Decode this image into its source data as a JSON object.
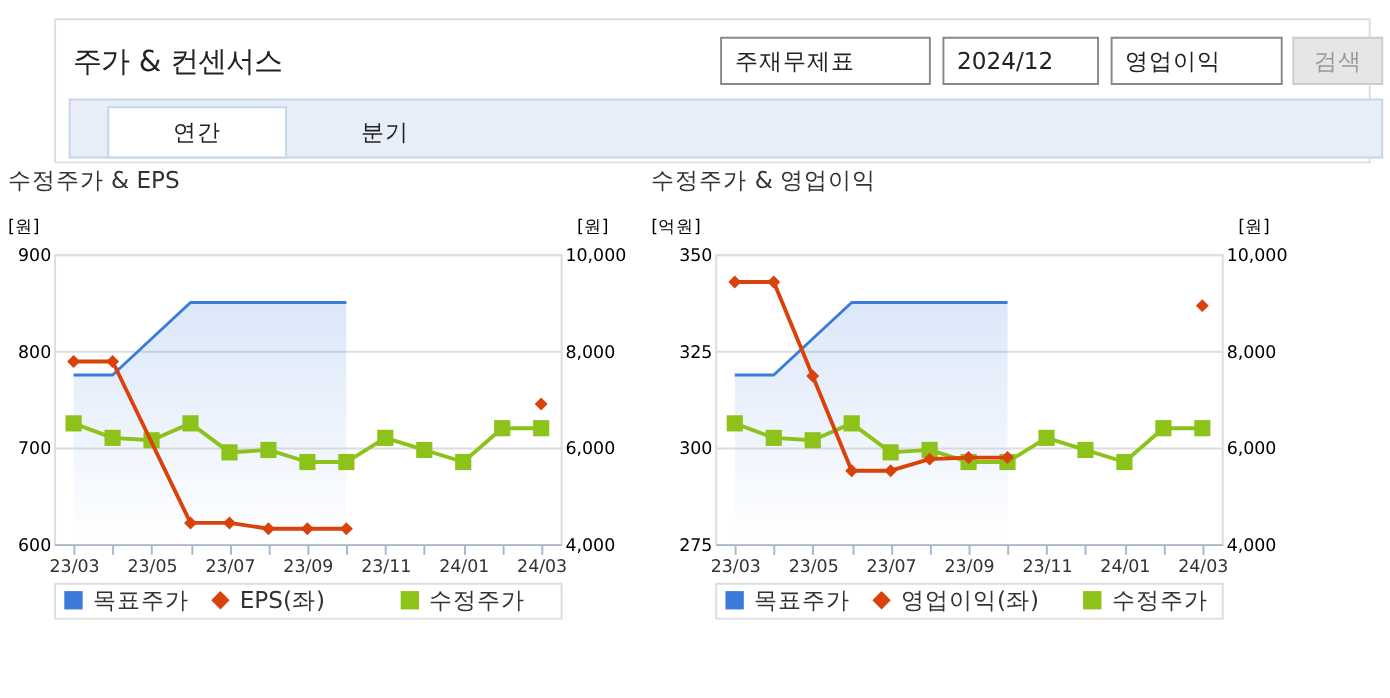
{
  "chart_data": [
    {
      "type": "other",
      "annotations": [
        "주가 & 컨센서스",
        "주재무제표",
        "2024/12",
        "영업이익",
        "검색",
        "연간",
        "분기"
      ]
    },
    {
      "type": "line",
      "title": "수정주가 & EPS",
      "ylabel": "[원]",
      "y2label": "[원]",
      "categories": [
        "23/03",
        null,
        "23/05",
        null,
        "23/07",
        null,
        "23/09",
        null,
        "23/11",
        null,
        "24/01",
        null,
        "24/03"
      ],
      "ylim": [
        600,
        900
      ],
      "yticks": [
        600,
        700,
        800,
        900
      ],
      "y2lim": [
        4000,
        10000
      ],
      "y2ticks": [
        {
          "value": 4000,
          "label": "4,000"
        },
        {
          "value": 6000,
          "label": "6,000"
        },
        {
          "value": 8000,
          "label": "8,000"
        },
        {
          "value": 10000,
          "label": "10,000"
        }
      ],
      "grid": "y",
      "legend": "bottom",
      "series": [
        {
          "name": "목표주가",
          "type": "area",
          "axis": "y2",
          "color": "#3a7bdc",
          "marker": "none",
          "values": [
            7500,
            7500,
            8250,
            9000,
            9000,
            9000,
            9000,
            9000,
            null,
            null,
            null,
            null,
            null
          ]
        },
        {
          "name": "EPS(좌)",
          "type": "line",
          "axis": "y",
          "color": "#d9420b",
          "marker": "diamond",
          "values": [
            789,
            789,
            null,
            622,
            622,
            616,
            616,
            616,
            null,
            null,
            null,
            null,
            745
          ]
        },
        {
          "name": "수정주가",
          "type": "line",
          "axis": "y2",
          "color": "#8cc21a",
          "marker": "square",
          "values": [
            6500,
            6200,
            6150,
            6500,
            5900,
            5950,
            5700,
            5700,
            6200,
            5950,
            5700,
            6400,
            6400
          ]
        }
      ]
    },
    {
      "type": "line",
      "title": "수정주가 & 영업이익",
      "ylabel": "[억원]",
      "y2label": "[원]",
      "categories": [
        "23/03",
        null,
        "23/05",
        null,
        "23/07",
        null,
        "23/09",
        null,
        "23/11",
        null,
        "24/01",
        null,
        "24/03"
      ],
      "ylim": [
        275,
        350
      ],
      "yticks": [
        275,
        300,
        325,
        350
      ],
      "y2lim": [
        4000,
        10000
      ],
      "y2ticks": [
        {
          "value": 4000,
          "label": "4,000"
        },
        {
          "value": 6000,
          "label": "6,000"
        },
        {
          "value": 8000,
          "label": "8,000"
        },
        {
          "value": 10000,
          "label": "10,000"
        }
      ],
      "grid": "y",
      "legend": "bottom",
      "series": [
        {
          "name": "목표주가",
          "type": "area",
          "axis": "y2",
          "color": "#3a7bdc",
          "marker": "none",
          "values": [
            7500,
            7500,
            8250,
            9000,
            9000,
            9000,
            9000,
            9000,
            null,
            null,
            null,
            null,
            null
          ]
        },
        {
          "name": "영업이익(좌)",
          "type": "line",
          "axis": "y",
          "color": "#d9420b",
          "marker": "diamond",
          "values": [
            342.8,
            342.8,
            318.5,
            294,
            294,
            297,
            297.4,
            297.4,
            null,
            null,
            null,
            null,
            336.7
          ]
        },
        {
          "name": "수정주가",
          "type": "line",
          "axis": "y2",
          "color": "#8cc21a",
          "marker": "square",
          "values": [
            6500,
            6200,
            6150,
            6500,
            5900,
            5950,
            5700,
            5700,
            6200,
            5950,
            5700,
            6400,
            6400
          ]
        }
      ]
    }
  ]
}
